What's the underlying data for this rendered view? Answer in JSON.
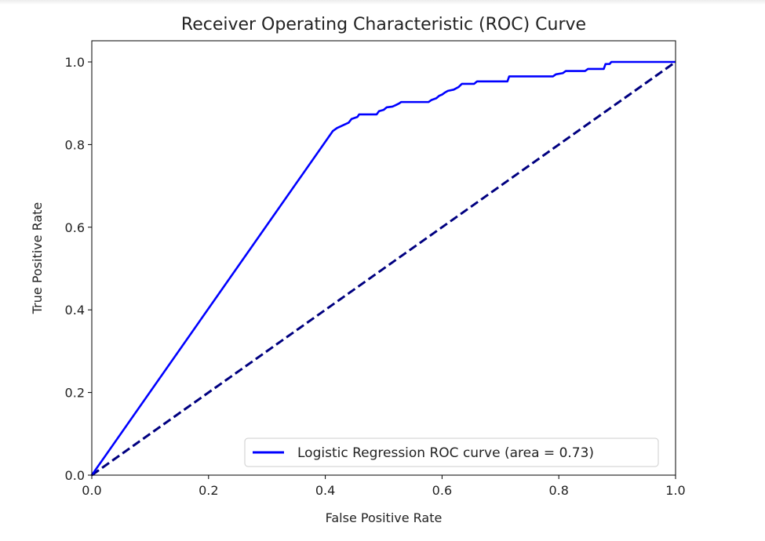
{
  "chart_data": {
    "type": "line",
    "title": "Receiver Operating Characteristic (ROC) Curve",
    "xlabel": "False Positive Rate",
    "ylabel": "True Positive Rate",
    "xlim": [
      0.0,
      1.0
    ],
    "ylim": [
      0.0,
      1.0
    ],
    "grid": false,
    "legend_position": "lower-right",
    "x_ticks": [
      "0.0",
      "0.2",
      "0.4",
      "0.6",
      "0.8",
      "1.0"
    ],
    "y_ticks": [
      "0.0",
      "0.2",
      "0.4",
      "0.6",
      "0.8",
      "1.0"
    ],
    "series": [
      {
        "name": "Logistic Regression ROC curve (area = 0.73)",
        "color": "#0000ff",
        "line_style": "solid",
        "x": [
          0.0,
          0.413,
          0.42,
          0.44,
          0.445,
          0.455,
          0.458,
          0.488,
          0.492,
          0.5,
          0.505,
          0.515,
          0.52,
          0.527,
          0.53,
          0.577,
          0.582,
          0.59,
          0.595,
          0.6,
          0.605,
          0.61,
          0.62,
          0.628,
          0.634,
          0.655,
          0.66,
          0.712,
          0.715,
          0.79,
          0.795,
          0.807,
          0.812,
          0.845,
          0.85,
          0.877,
          0.88,
          0.887,
          0.89,
          1.0
        ],
        "y": [
          0.0,
          0.833,
          0.84,
          0.853,
          0.862,
          0.867,
          0.873,
          0.873,
          0.881,
          0.884,
          0.89,
          0.892,
          0.895,
          0.9,
          0.903,
          0.903,
          0.908,
          0.912,
          0.918,
          0.921,
          0.926,
          0.93,
          0.933,
          0.939,
          0.947,
          0.947,
          0.953,
          0.953,
          0.965,
          0.965,
          0.97,
          0.973,
          0.978,
          0.978,
          0.983,
          0.983,
          0.995,
          0.995,
          1.0,
          1.0
        ]
      },
      {
        "name": "",
        "color": "#000080",
        "line_style": "dashed",
        "x": [
          0.0,
          1.0
        ],
        "y": [
          0.0,
          1.0
        ]
      }
    ]
  }
}
